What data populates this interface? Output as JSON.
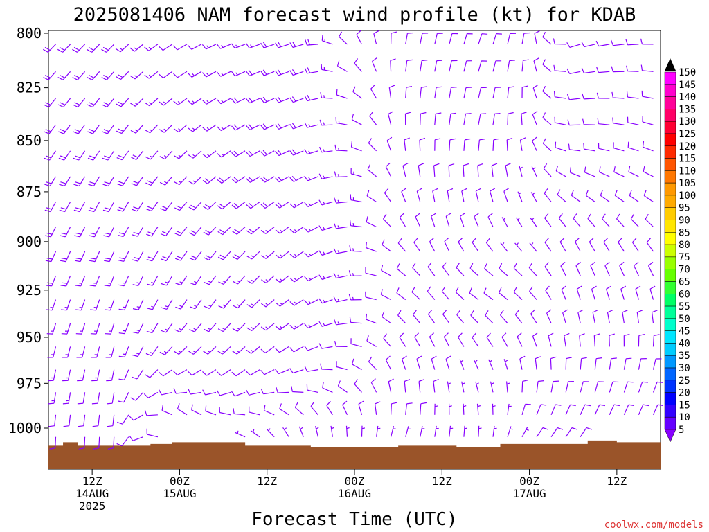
{
  "chart_data": {
    "type": "wind-barb",
    "title": "2025081406 NAM forecast wind profile (kt) for KDAB",
    "xlabel": "Forecast Time (UTC)",
    "ylabel": "",
    "watermark": "coolwx.com/models",
    "y_axis": {
      "scale": "pressure",
      "ylim": [
        800,
        1025
      ],
      "ticks": [
        800,
        825,
        850,
        875,
        900,
        925,
        950,
        975,
        1000
      ]
    },
    "x_axis": {
      "ticks": [
        {
          "hour": 12,
          "l1": "12Z",
          "l2": "14AUG",
          "l3": "2025"
        },
        {
          "hour": 24,
          "l1": "00Z",
          "l2": "15AUG",
          "l3": ""
        },
        {
          "hour": 36,
          "l1": "12Z",
          "l2": "",
          "l3": ""
        },
        {
          "hour": 48,
          "l1": "00Z",
          "l2": "16AUG",
          "l3": ""
        },
        {
          "hour": 60,
          "l1": "12Z",
          "l2": "",
          "l3": ""
        },
        {
          "hour": 72,
          "l1": "00Z",
          "l2": "17AUG",
          "l3": ""
        },
        {
          "hour": 84,
          "l1": "12Z",
          "l2": "",
          "l3": ""
        }
      ],
      "xlim": [
        6,
        90
      ]
    },
    "levels": [
      1013,
      1000,
      975,
      950,
      925,
      900,
      875,
      850,
      825,
      800
    ],
    "keyframes": [
      {
        "hour": 6,
        "winds": [
          [
            180,
            10
          ],
          [
            185,
            12
          ],
          [
            190,
            14
          ],
          [
            195,
            16
          ],
          [
            200,
            18
          ],
          [
            205,
            20
          ],
          [
            210,
            20
          ],
          [
            215,
            20
          ],
          [
            220,
            20
          ],
          [
            225,
            20
          ]
        ]
      },
      {
        "hour": 15,
        "winds": [
          [
            180,
            8
          ],
          [
            185,
            10
          ],
          [
            190,
            12
          ],
          [
            195,
            14
          ],
          [
            200,
            16
          ],
          [
            205,
            18
          ],
          [
            210,
            20
          ],
          [
            215,
            20
          ],
          [
            220,
            20
          ],
          [
            225,
            18
          ]
        ]
      },
      {
        "hour": 24,
        "winds": [
          [
            340,
            5
          ],
          [
            330,
            8
          ],
          [
            250,
            10
          ],
          [
            220,
            14
          ],
          [
            210,
            16
          ],
          [
            215,
            18
          ],
          [
            220,
            18
          ],
          [
            225,
            15
          ],
          [
            235,
            12
          ],
          [
            240,
            10
          ]
        ]
      },
      {
        "hour": 33,
        "winds": [
          [
            300,
            5
          ],
          [
            290,
            8
          ],
          [
            240,
            10
          ],
          [
            225,
            14
          ],
          [
            220,
            16
          ],
          [
            225,
            18
          ],
          [
            235,
            18
          ],
          [
            240,
            18
          ],
          [
            245,
            18
          ],
          [
            250,
            15
          ]
        ]
      },
      {
        "hour": 42,
        "winds": [
          [
            350,
            5
          ],
          [
            340,
            8
          ],
          [
            260,
            10
          ],
          [
            240,
            12
          ],
          [
            240,
            14
          ],
          [
            235,
            15
          ],
          [
            240,
            18
          ],
          [
            250,
            18
          ],
          [
            250,
            20
          ],
          [
            255,
            20
          ]
        ]
      },
      {
        "hour": 48,
        "winds": [
          [
            5,
            6
          ],
          [
            355,
            8
          ],
          [
            300,
            10
          ],
          [
            270,
            12
          ],
          [
            260,
            14
          ],
          [
            265,
            14
          ],
          [
            270,
            14
          ],
          [
            280,
            12
          ],
          [
            300,
            10
          ],
          [
            330,
            10
          ]
        ]
      },
      {
        "hour": 54,
        "winds": [
          [
            20,
            6
          ],
          [
            15,
            8
          ],
          [
            350,
            10
          ],
          [
            320,
            10
          ],
          [
            300,
            10
          ],
          [
            320,
            10
          ],
          [
            340,
            10
          ],
          [
            355,
            12
          ],
          [
            5,
            12
          ],
          [
            10,
            12
          ]
        ]
      },
      {
        "hour": 60,
        "winds": [
          [
            10,
            5
          ],
          [
            5,
            6
          ],
          [
            350,
            8
          ],
          [
            330,
            8
          ],
          [
            320,
            8
          ],
          [
            340,
            8
          ],
          [
            355,
            10
          ],
          [
            5,
            10
          ],
          [
            10,
            12
          ],
          [
            15,
            12
          ]
        ]
      },
      {
        "hour": 66,
        "winds": [
          [
            5,
            5
          ],
          [
            0,
            5
          ],
          [
            340,
            6
          ],
          [
            320,
            8
          ],
          [
            300,
            8
          ],
          [
            330,
            8
          ],
          [
            350,
            10
          ],
          [
            10,
            10
          ],
          [
            15,
            12
          ],
          [
            20,
            12
          ]
        ]
      },
      {
        "hour": 72,
        "winds": [
          [
            40,
            6
          ],
          [
            30,
            8
          ],
          [
            360,
            8
          ],
          [
            330,
            8
          ],
          [
            310,
            8
          ],
          [
            320,
            6
          ],
          [
            340,
            6
          ],
          [
            350,
            8
          ],
          [
            0,
            8
          ],
          [
            10,
            8
          ]
        ]
      },
      {
        "hour": 78,
        "winds": [
          [
            40,
            8
          ],
          [
            30,
            10
          ],
          [
            10,
            10
          ],
          [
            350,
            10
          ],
          [
            340,
            10
          ],
          [
            330,
            10
          ],
          [
            300,
            10
          ],
          [
            270,
            12
          ],
          [
            260,
            12
          ],
          [
            250,
            12
          ]
        ]
      },
      {
        "hour": 90,
        "winds": [
          [
            30,
            10
          ],
          [
            25,
            12
          ],
          [
            20,
            12
          ],
          [
            360,
            12
          ],
          [
            340,
            12
          ],
          [
            320,
            12
          ],
          [
            300,
            12
          ],
          [
            290,
            12
          ],
          [
            280,
            10
          ],
          [
            270,
            10
          ]
        ]
      }
    ],
    "grid": false,
    "legend": "right",
    "colorbar": {
      "labels": [
        150,
        145,
        140,
        135,
        130,
        125,
        120,
        115,
        110,
        105,
        100,
        95,
        90,
        85,
        80,
        75,
        70,
        65,
        60,
        55,
        50,
        45,
        40,
        35,
        30,
        25,
        20,
        15,
        10,
        5
      ],
      "colors": [
        "#ff00ff",
        "#ff00cc",
        "#ff0099",
        "#ff0066",
        "#ff0033",
        "#ff0000",
        "#ff2a00",
        "#ff5500",
        "#ff7700",
        "#ff9900",
        "#ffaa00",
        "#ffcc00",
        "#ffe600",
        "#ffff00",
        "#ccff00",
        "#99ff00",
        "#66ff00",
        "#33ff33",
        "#00ff66",
        "#00ff99",
        "#00ffcc",
        "#00e6ff",
        "#00ccff",
        "#0099ff",
        "#0066ff",
        "#0033ff",
        "#0000ff",
        "#3300ff",
        "#6600ff",
        "#8800ff"
      ]
    },
    "barb_color": "#8800ff",
    "terrain_color": "#9a5429",
    "terrain": [
      {
        "hour": 6,
        "p": 1010
      },
      {
        "hour": 8,
        "p": 1008
      },
      {
        "hour": 10,
        "p": 1010
      },
      {
        "hour": 20,
        "p": 1009
      },
      {
        "hour": 23,
        "p": 1008
      },
      {
        "hour": 33,
        "p": 1010
      },
      {
        "hour": 42,
        "p": 1011
      },
      {
        "hour": 54,
        "p": 1010
      },
      {
        "hour": 62,
        "p": 1011
      },
      {
        "hour": 68,
        "p": 1009
      },
      {
        "hour": 80,
        "p": 1007
      },
      {
        "hour": 84,
        "p": 1008
      },
      {
        "hour": 90,
        "p": 1008
      }
    ]
  }
}
